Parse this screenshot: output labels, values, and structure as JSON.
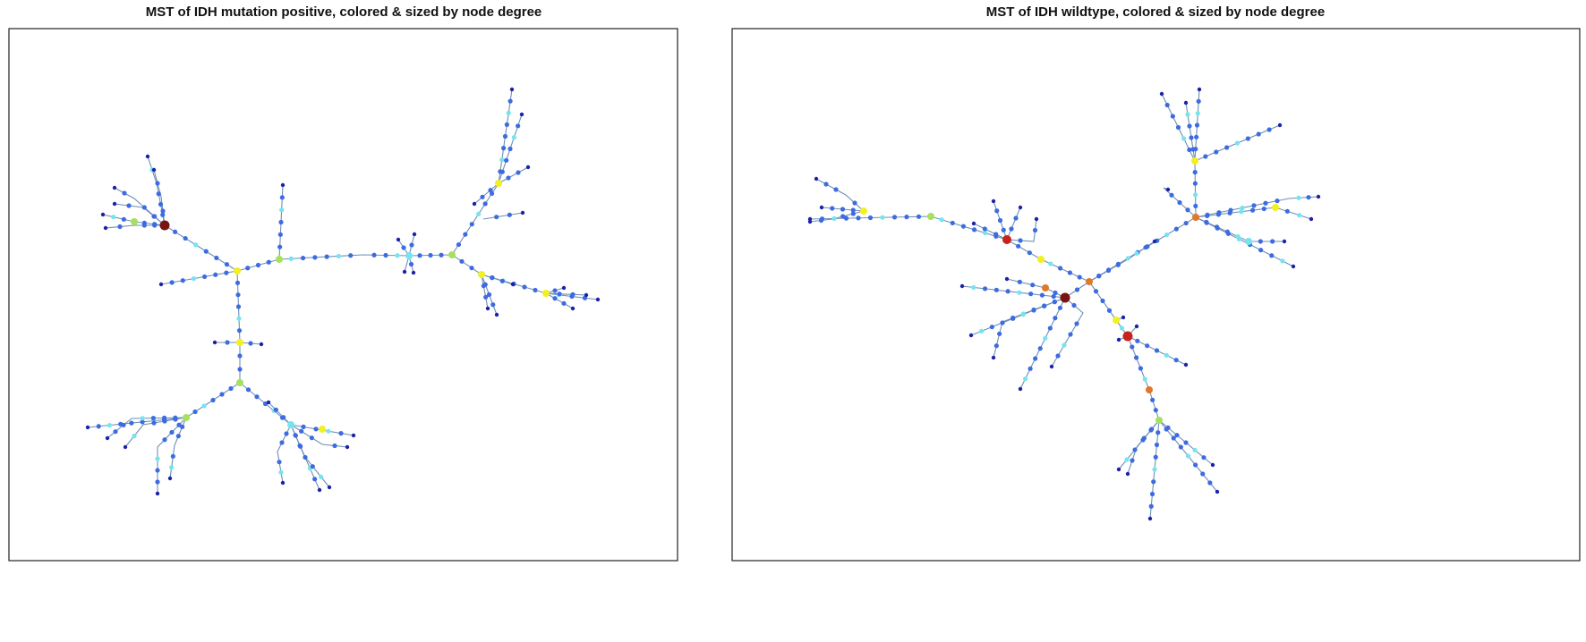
{
  "panels": [
    {
      "title": "MST of IDH mutation positive, colored & sized by node degree"
    },
    {
      "title": "MST of IDH wildtype, colored & sized by node degree"
    }
  ]
}
